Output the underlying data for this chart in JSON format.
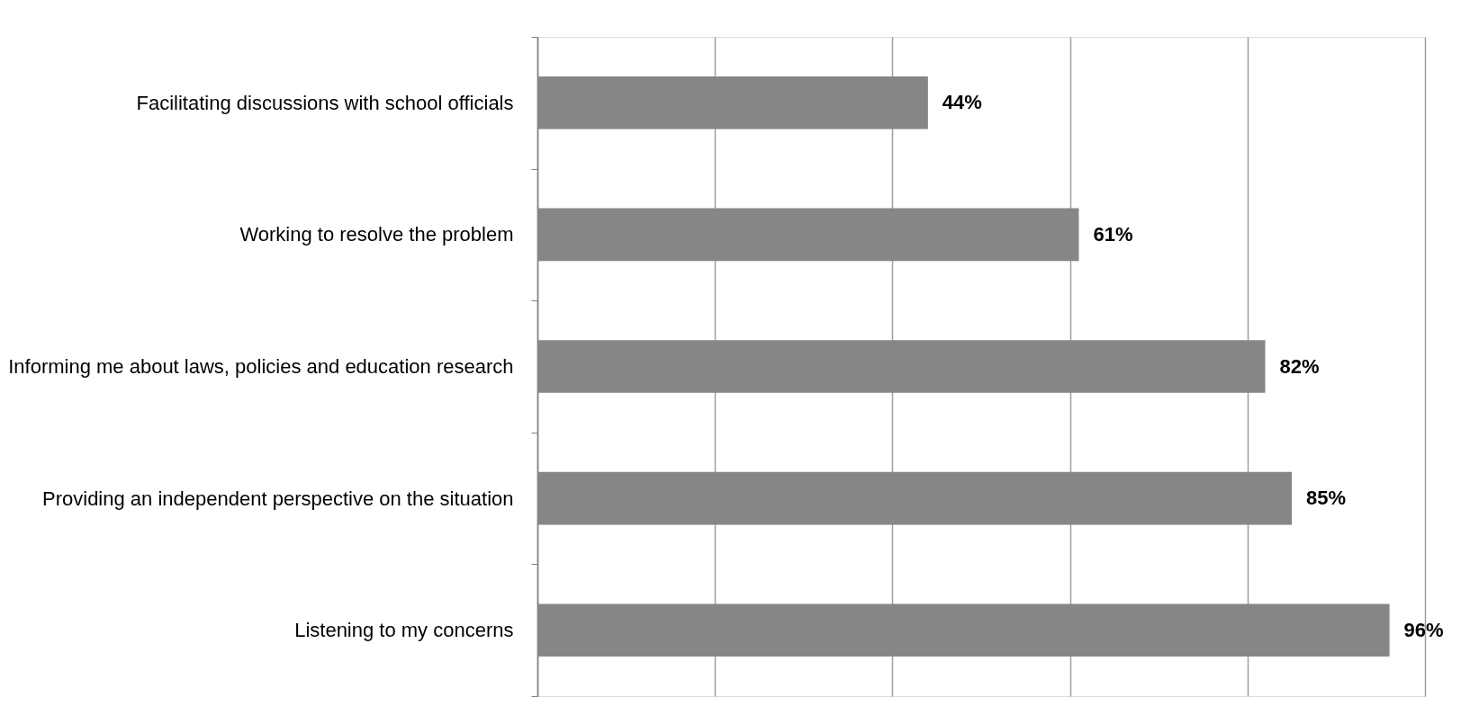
{
  "chart_data": {
    "type": "bar",
    "orientation": "horizontal",
    "categories": [
      "Facilitating discussions with school officials",
      "Working to resolve the problem",
      "Informing me about laws, policies and education research",
      "Providing an independent perspective on the situation",
      "Listening to my concerns"
    ],
    "values": [
      44,
      61,
      82,
      85,
      96
    ],
    "value_labels": [
      "44%",
      "61%",
      "82%",
      "85%",
      "96%"
    ],
    "color": "#868686",
    "xlim": [
      0,
      100
    ],
    "xticks": [
      {
        "value": 0,
        "label": null
      },
      {
        "value": 20,
        "label": null
      },
      {
        "value": 40,
        "label": null
      },
      {
        "value": 60,
        "label": null
      },
      {
        "value": 80,
        "label": null
      },
      {
        "value": 100,
        "label": null
      }
    ],
    "grid": "x",
    "tick_labels": "y"
  }
}
